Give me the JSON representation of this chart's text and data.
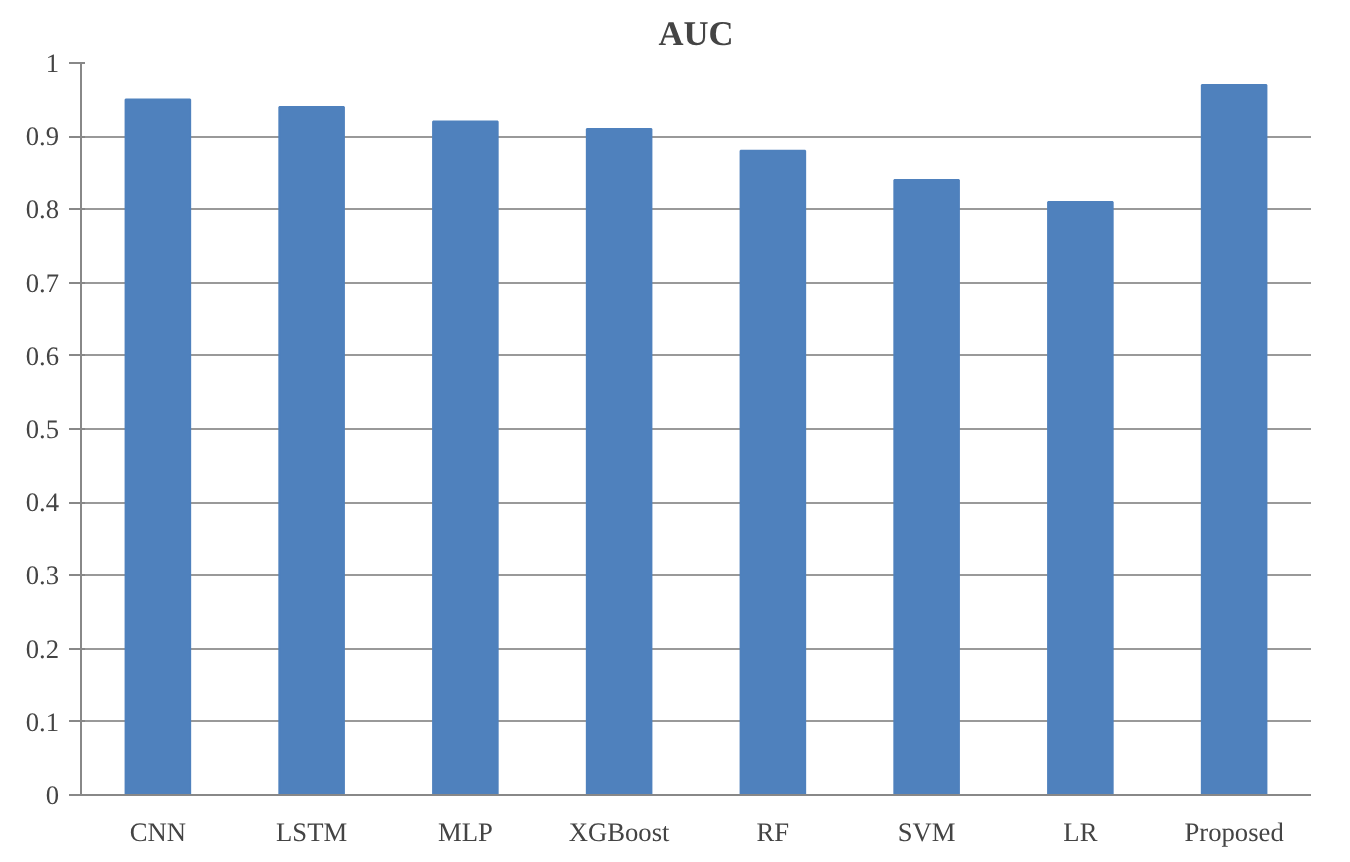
{
  "chart_data": {
    "type": "bar",
    "title": "AUC",
    "categories": [
      "CNN",
      "LSTM",
      "MLP",
      "XGBoost",
      "RF",
      "SVM",
      "LR",
      "Proposed"
    ],
    "values": [
      0.95,
      0.94,
      0.92,
      0.91,
      0.88,
      0.84,
      0.81,
      0.97
    ],
    "color": "#4f81bd",
    "ylim": [
      0,
      1
    ],
    "yticks": [
      0,
      0.1,
      0.2,
      0.3,
      0.4,
      0.5,
      0.6,
      0.7,
      0.8,
      0.9,
      1
    ],
    "grid": "y"
  }
}
